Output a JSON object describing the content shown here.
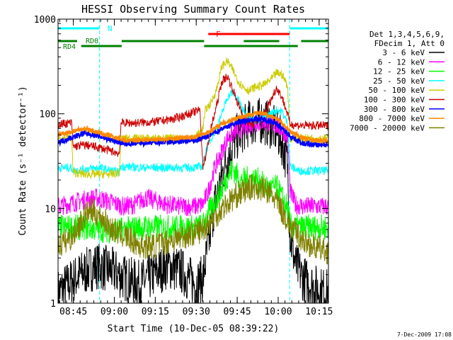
{
  "chart_data": {
    "type": "line",
    "title": "HESSI Observing Summary Count Rates",
    "xlabel": "Start Time (10-Dec-05 08:39:22)",
    "ylabel": "Count Rate (s⁻¹ detector⁻¹)",
    "yscale": "log",
    "ylim": [
      1,
      1000
    ],
    "xlim_minutes": [
      0,
      99
    ],
    "x_unit": "minutes since 08:39:22",
    "x_tick_labels": [
      "08:45",
      "09:00",
      "09:15",
      "09:30",
      "09:45",
      "10:00",
      "10:15"
    ],
    "x_tick_minutes": [
      5.6,
      20.6,
      35.6,
      50.6,
      65.6,
      80.6,
      95.6
    ],
    "y_tick_labels": [
      "1",
      "10",
      "100",
      "1000"
    ],
    "y_ticks": [
      1,
      10,
      100,
      1000
    ],
    "grid": false,
    "legend_position": "right",
    "legend_header": [
      "Det 1,3,4,5,6,9,",
      "FDecim 1, Att 0"
    ],
    "footer_date": "7-Dec-2009 17:08",
    "bar_labels": {
      "N": "N",
      "F": "F",
      "RD0": "RD0",
      "RD4": "RD4"
    },
    "night_lines_minutes": [
      15.2,
      84.8
    ],
    "saa_lines_minutes": [
      0,
      99
    ],
    "bars": {
      "N": {
        "color": "#00ffff",
        "intervals": [
          [
            0,
            15.2
          ],
          [
            84.8,
            99
          ]
        ]
      },
      "F": {
        "color": "#ff0000",
        "intervals": [
          [
            55,
            84.8
          ]
        ]
      },
      "RD0": {
        "color": "#008000",
        "intervals": [
          [
            0,
            7
          ],
          [
            23.3,
            53.5
          ],
          [
            68,
            81
          ],
          [
            89,
            99
          ]
        ]
      },
      "RD4": {
        "color": "#008000",
        "intervals": [
          [
            8.5,
            23.3
          ],
          [
            53.5,
            87.8
          ]
        ]
      }
    },
    "series": [
      {
        "name": "3 - 6 keV",
        "color": "#000000",
        "x": [
          0,
          8,
          14,
          20,
          25,
          30,
          35,
          40,
          45,
          50,
          53,
          55,
          57,
          60,
          62,
          65,
          68,
          70,
          72,
          75,
          78,
          80,
          82,
          84,
          85,
          87,
          90,
          95,
          99
        ],
        "y": [
          1.3,
          2.0,
          2.5,
          2.2,
          1.8,
          1.6,
          2.0,
          2.5,
          2.2,
          1.6,
          1.8,
          4,
          10,
          22,
          35,
          55,
          70,
          80,
          82,
          85,
          75,
          65,
          50,
          30,
          5,
          2.5,
          1.8,
          1.4,
          1.3
        ]
      },
      {
        "name": "6 - 12 keV",
        "color": "#ff00ff",
        "x": [
          0,
          8,
          14,
          20,
          24,
          28,
          32,
          36,
          40,
          45,
          50,
          53,
          55,
          57,
          60,
          62,
          65,
          68,
          70,
          72,
          75,
          78,
          80,
          82,
          84,
          85,
          87,
          90,
          95,
          99
        ],
        "y": [
          10.5,
          12,
          13,
          11.5,
          10.5,
          11,
          13,
          12,
          11,
          10.5,
          10.5,
          11,
          15,
          25,
          40,
          55,
          65,
          72,
          76,
          80,
          82,
          80,
          75,
          68,
          58,
          15,
          11,
          10.5,
          10.5,
          10.5
        ]
      },
      {
        "name": "12 - 25 keV",
        "color": "#00ff00",
        "x": [
          0,
          10,
          20,
          30,
          40,
          50,
          53,
          55,
          58,
          60,
          62,
          64,
          65,
          67,
          70,
          73,
          76,
          78,
          80,
          82,
          84,
          85,
          87,
          90,
          95,
          99
        ],
        "y": [
          6.3,
          6.3,
          5.8,
          6.3,
          6.3,
          6.3,
          6.5,
          9,
          12,
          16,
          22,
          26,
          24,
          19,
          21,
          20,
          17,
          16,
          17,
          13,
          10,
          6.5,
          6.3,
          6.3,
          6.3,
          6.3
        ]
      },
      {
        "name": "25 - 50 keV",
        "color": "#00ffff",
        "x": [
          0,
          5,
          5.5,
          10,
          15,
          20,
          22.5,
          23,
          30,
          40,
          50,
          53,
          54,
          56,
          58,
          60,
          62,
          64,
          66,
          68,
          70,
          72,
          75,
          78,
          80,
          82,
          84,
          85,
          88,
          90,
          95,
          99
        ],
        "y": [
          27,
          27,
          25,
          26,
          27,
          25,
          24,
          28,
          27,
          27,
          27,
          28,
          40,
          55,
          70,
          100,
          150,
          170,
          140,
          105,
          90,
          85,
          90,
          100,
          110,
          105,
          80,
          28,
          25,
          25,
          25,
          25
        ]
      },
      {
        "name": "50 - 100 keV",
        "color": "#cccc00",
        "x": [
          0,
          5,
          5.5,
          10,
          15,
          20,
          22.5,
          23,
          28,
          35,
          42,
          50,
          53,
          54,
          56,
          58,
          60,
          62,
          64,
          66,
          68,
          70,
          72,
          75,
          78,
          80,
          82,
          84,
          85,
          87,
          90,
          95,
          99
        ],
        "y": [
          55,
          56,
          24,
          23,
          23,
          23,
          24,
          55,
          55,
          55,
          55,
          55,
          70,
          110,
          130,
          180,
          320,
          360,
          290,
          220,
          190,
          175,
          190,
          200,
          230,
          270,
          260,
          200,
          55,
          55,
          55,
          55,
          55
        ]
      },
      {
        "name": "100 - 300 keV",
        "color": "#cc0000",
        "x": [
          0,
          5,
          5.5,
          10,
          15,
          20,
          22.5,
          23,
          28,
          35,
          42,
          48,
          52,
          53,
          54,
          56,
          58,
          60,
          62,
          64,
          66,
          68,
          70,
          72,
          75,
          78,
          80,
          82,
          84,
          85,
          87,
          90,
          95,
          99
        ],
        "y": [
          78,
          80,
          45,
          47,
          44,
          40,
          38,
          80,
          80,
          82,
          88,
          100,
          110,
          28,
          35,
          70,
          120,
          220,
          250,
          180,
          125,
          90,
          78,
          80,
          95,
          140,
          190,
          150,
          100,
          78,
          76,
          75,
          75,
          75
        ]
      },
      {
        "name": "300 - 800 keV",
        "color": "#0000ff",
        "x": [
          0,
          5,
          10,
          15,
          20,
          25,
          30,
          40,
          50,
          55,
          60,
          65,
          70,
          72,
          75,
          78,
          80,
          82,
          85,
          90,
          95,
          99
        ],
        "y": [
          50,
          56,
          63,
          58,
          52,
          48,
          49,
          50,
          52,
          58,
          70,
          80,
          86,
          88,
          87,
          84,
          78,
          70,
          58,
          48,
          47,
          47
        ]
      },
      {
        "name": "800 - 7000 keV",
        "color": "#ff8800",
        "x": [
          0,
          5,
          10,
          15,
          20,
          25,
          30,
          40,
          50,
          55,
          60,
          65,
          70,
          73,
          75,
          78,
          80,
          82,
          85,
          90,
          95,
          99
        ],
        "y": [
          60,
          65,
          70,
          63,
          57,
          52,
          53,
          54,
          57,
          64,
          78,
          90,
          98,
          102,
          100,
          95,
          88,
          80,
          65,
          55,
          52,
          52
        ]
      },
      {
        "name": "7000 - 20000 keV",
        "color": "#808000",
        "x": [
          0,
          5,
          10,
          12,
          15,
          20,
          25,
          30,
          35,
          40,
          45,
          50,
          53,
          55,
          58,
          60,
          63,
          65,
          70,
          72,
          75,
          78,
          80,
          82,
          85,
          90,
          95,
          99
        ],
        "y": [
          4.0,
          5.0,
          8.5,
          9.5,
          8.5,
          6.0,
          5.0,
          4.0,
          4.0,
          4.5,
          5.0,
          5.5,
          6.0,
          7.0,
          8.5,
          10,
          12,
          13.5,
          16.5,
          17,
          16,
          14,
          12,
          9.5,
          6.5,
          4.5,
          3.8,
          3.5
        ]
      }
    ]
  }
}
